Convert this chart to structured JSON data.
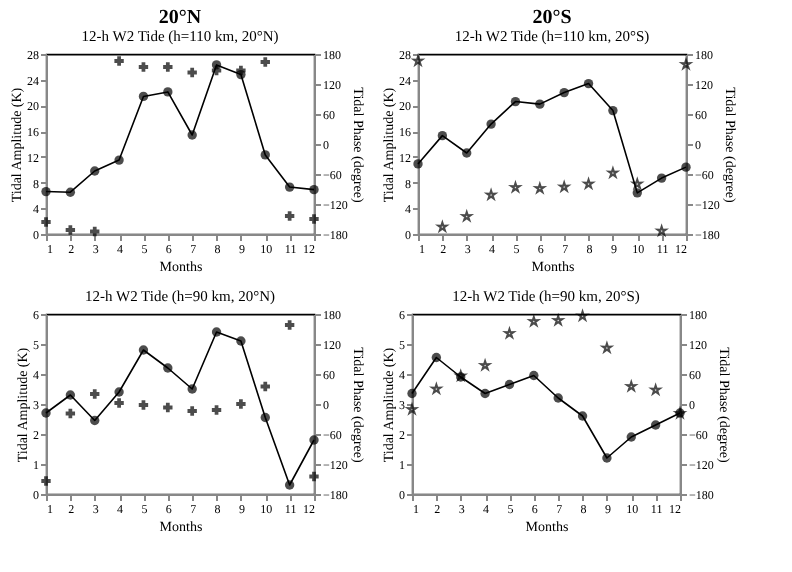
{
  "chart_data": [
    {
      "type": "line",
      "title": "20°N",
      "subtitle": "12-h W2 Tide (h=110 km, 20°N)",
      "xlabel": "Months",
      "ylabel": "Tidal Amplitude (K)",
      "y2label": "Tidal Phase (degree)",
      "x": [
        1,
        2,
        3,
        4,
        5,
        6,
        7,
        8,
        9,
        10,
        11,
        12
      ],
      "xlim": [
        1,
        12
      ],
      "xticks": [
        1,
        2,
        3,
        4,
        5,
        6,
        7,
        8,
        9,
        10,
        11,
        12
      ],
      "ylim": [
        0,
        28
      ],
      "yticks": [
        0,
        4,
        8,
        12,
        16,
        20,
        24,
        28
      ],
      "y2lim": [
        -180,
        180
      ],
      "y2ticks": [
        -180,
        -120,
        -60,
        0,
        60,
        120,
        180
      ],
      "grid": false,
      "series": [
        {
          "type": "line",
          "line_style": "solid",
          "color": "#000000",
          "marker": "circle",
          "values": [
            6.6,
            6.5,
            9.8,
            11.5,
            21.4,
            22.1,
            15.4,
            26.3,
            24.8,
            12.3,
            7.3,
            6.9
          ]
        },
        {
          "type": "scatter",
          "axis": "y2",
          "color": "#000000",
          "marker": "cross",
          "values": [
            -156,
            -172,
            -175,
            166,
            154,
            154,
            143,
            147,
            147,
            164,
            -144,
            -150
          ]
        }
      ]
    },
    {
      "type": "line",
      "title": "20°S",
      "subtitle": "12-h W2 Tide (h=110 km, 20°S)",
      "xlabel": "Months",
      "ylabel": "Tidal Amplitude (K)",
      "y2label": "Tidal Phase (degree)",
      "x": [
        1,
        2,
        3,
        4,
        5,
        6,
        7,
        8,
        9,
        10,
        11,
        12
      ],
      "xlim": [
        1,
        12
      ],
      "xticks": [
        1,
        2,
        3,
        4,
        5,
        6,
        7,
        8,
        9,
        10,
        11,
        12
      ],
      "ylim": [
        0,
        28
      ],
      "yticks": [
        0,
        4,
        8,
        12,
        16,
        20,
        24,
        28
      ],
      "y2lim": [
        -180,
        180
      ],
      "y2ticks": [
        -180,
        -120,
        -60,
        0,
        60,
        120,
        180
      ],
      "grid": false,
      "series": [
        {
          "type": "line",
          "line_style": "solid",
          "color": "#000000",
          "marker": "circle",
          "values": [
            10.9,
            15.3,
            12.6,
            17.1,
            20.6,
            20.2,
            22.0,
            23.4,
            19.2,
            6.4,
            8.7,
            10.4
          ]
        },
        {
          "type": "scatter",
          "axis": "y2",
          "color": "#000000",
          "marker": "star",
          "values": [
            166,
            -166,
            -145,
            -102,
            -87,
            -89,
            -86,
            -80,
            -58,
            -80,
            -174,
            159
          ]
        }
      ]
    },
    {
      "type": "line",
      "title": "12-h W2 Tide (h=90 km, 20°N)",
      "xlabel": "Months",
      "ylabel": "Tidal Amplitude (K)",
      "y2label": "Tidal Phase (degree)",
      "x": [
        1,
        2,
        3,
        4,
        5,
        6,
        7,
        8,
        9,
        10,
        11,
        12
      ],
      "xlim": [
        1,
        12
      ],
      "xticks": [
        1,
        2,
        3,
        4,
        5,
        6,
        7,
        8,
        9,
        10,
        11,
        12
      ],
      "ylim": [
        0,
        6
      ],
      "yticks": [
        0,
        1,
        2,
        3,
        4,
        5,
        6
      ],
      "y2lim": [
        -180,
        180
      ],
      "y2ticks": [
        -180,
        -120,
        -60,
        0,
        60,
        120,
        180
      ],
      "grid": false,
      "series": [
        {
          "type": "line",
          "line_style": "solid",
          "color": "#000000",
          "marker": "circle",
          "values": [
            2.7,
            3.3,
            2.45,
            3.4,
            4.8,
            4.2,
            3.5,
            5.4,
            5.1,
            2.55,
            0.3,
            1.8
          ]
        },
        {
          "type": "scatter",
          "axis": "y2",
          "color": "#000000",
          "marker": "cross",
          "values": [
            -154,
            -19,
            20,
            2,
            -2,
            -7,
            -14,
            -12,
            0,
            35,
            158,
            -145
          ]
        }
      ]
    },
    {
      "type": "line",
      "title": "12-h W2 Tide (h=90 km, 20°S)",
      "xlabel": "Months",
      "ylabel": "Tidal Amplitude (K)",
      "y2label": "Tidal Phase (degree)",
      "x": [
        1,
        2,
        3,
        4,
        5,
        6,
        7,
        8,
        9,
        10,
        11,
        12
      ],
      "xlim": [
        1,
        12
      ],
      "xticks": [
        1,
        2,
        3,
        4,
        5,
        6,
        7,
        8,
        9,
        10,
        11,
        12
      ],
      "ylim": [
        0,
        6
      ],
      "yticks": [
        0,
        1,
        2,
        3,
        4,
        5,
        6
      ],
      "y2lim": [
        -180,
        180
      ],
      "y2ticks": [
        -180,
        -120,
        -60,
        0,
        60,
        120,
        180
      ],
      "grid": false,
      "series": [
        {
          "type": "line",
          "line_style": "solid",
          "color": "#000000",
          "marker": "circle",
          "values": [
            3.35,
            4.55,
            3.9,
            3.35,
            3.65,
            3.95,
            3.2,
            2.6,
            1.2,
            1.9,
            2.3,
            2.7
          ]
        },
        {
          "type": "scatter",
          "axis": "y2",
          "color": "#000000",
          "marker": "star",
          "values": [
            -11,
            30,
            56,
            77,
            141,
            165,
            167,
            176,
            112,
            35,
            28,
            -19
          ]
        }
      ]
    }
  ]
}
